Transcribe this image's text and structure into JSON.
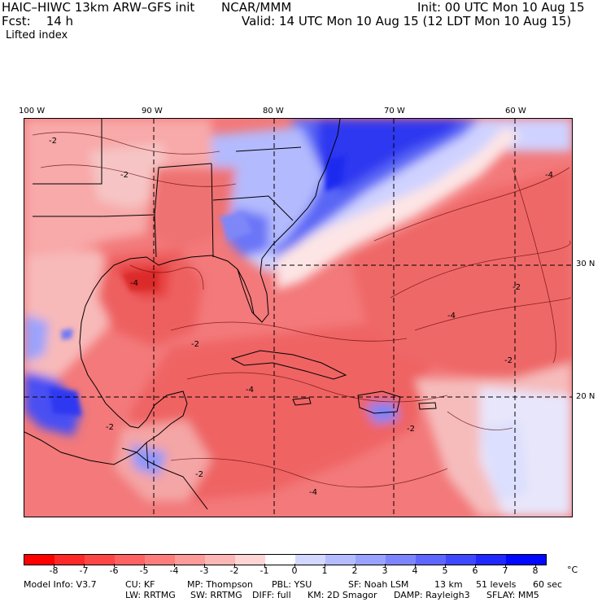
{
  "header": {
    "model_title": "HAIC–HIWC 13km ARW–GFS init",
    "org": "NCAR/MMM",
    "forecast": "Fcst:    14 h",
    "field": "Lifted index",
    "init": "Init: 00 UTC Mon 10 Aug 15",
    "valid": "Valid: 14 UTC Mon 10 Aug 15 (12 LDT Mon 10 Aug 15)"
  },
  "map": {
    "longitude_labels": [
      "100 W",
      "90 W",
      "80 W",
      "70 W",
      "60 W"
    ],
    "latitude_labels": [
      "30 N",
      "20 N"
    ],
    "contour_labels": [
      "-2",
      "-2",
      "-2",
      "-4",
      "-4",
      "-2",
      "-2",
      "-2",
      "-4",
      "-2",
      "-4",
      "-2",
      "-4"
    ]
  },
  "colorbar": {
    "ticks": [
      "-8",
      "-7",
      "-6",
      "-5",
      "-4",
      "-3",
      "-2",
      "-1",
      "0",
      "1",
      "2",
      "3",
      "4",
      "5",
      "6",
      "7",
      "8"
    ],
    "unit": "°C",
    "colors": [
      "#ff0000",
      "#ff2828",
      "#ff4646",
      "#fe6262",
      "#fd7d7d",
      "#fd9a9a",
      "#fdb6b6",
      "#fed4d4",
      "#ffffff",
      "#d2d8ff",
      "#b4bcff",
      "#9aa2ff",
      "#7c84ff",
      "#5e66ff",
      "#3f48ff",
      "#2028ff",
      "#0008ff"
    ]
  },
  "model_info": {
    "line1": [
      "Model Info: V3.7",
      "CU: KF",
      "MP: Thompson",
      "PBL: YSU",
      "SF: Noah LSM",
      "13 km",
      "51 levels",
      "60 sec"
    ],
    "line2": [
      "LW: RRTMG",
      "SW: RRTMG",
      "DIFF: full",
      "KM: 2D Smagor",
      "DAMP: Rayleigh3",
      "SFLAY: MM5"
    ]
  }
}
